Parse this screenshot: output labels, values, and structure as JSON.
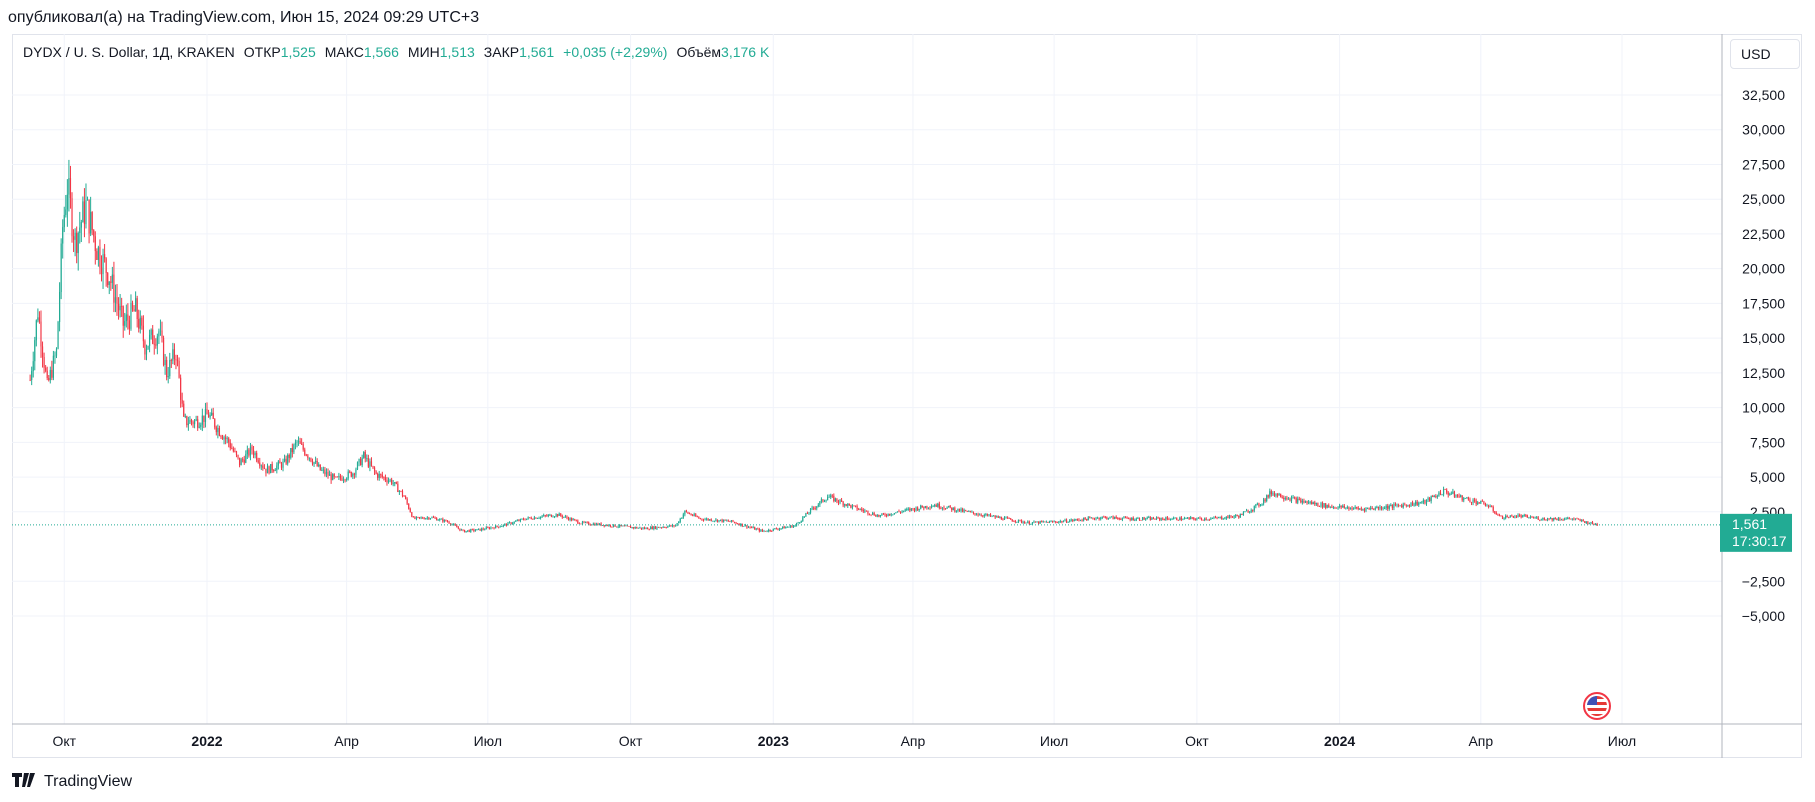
{
  "published": "опубликовал(а) на TradingView.com, Июн 15, 2024 09:29 UTC+3",
  "legend": {
    "symbol": "DYDX / U. S. Dollar, 1Д, KRAKEN",
    "open_label": "ОТКР",
    "open": "1,525",
    "high_label": "МАКС",
    "high": "1,566",
    "low_label": "МИН",
    "low": "1,513",
    "close_label": "ЗАКР",
    "close": "1,561",
    "change": "+0,035 (+2,29%)",
    "volume_label": "Объём",
    "volume": "3,176 K"
  },
  "currency_button": "USD",
  "footer": {
    "brand": "TradingView"
  },
  "colors": {
    "up": "#22ab94",
    "down": "#f23645",
    "grid": "#f0f3fa",
    "price_tag": "#22ab94"
  },
  "icons": {
    "event_flag": "us-flag-icon",
    "logo": "tradingview-logo-icon"
  },
  "chart_data": {
    "type": "candlestick",
    "y_ticks": [
      "32,500",
      "30,000",
      "27,500",
      "25,000",
      "22,500",
      "20,000",
      "17,500",
      "15,000",
      "12,500",
      "10,000",
      "7,500",
      "5,000",
      "2,500",
      "−2,500",
      "−5,000"
    ],
    "ylim": [
      -5000,
      35000
    ],
    "x_ticks": [
      {
        "label": "Окт",
        "date": "2021-10-01",
        "bold": false
      },
      {
        "label": "2022",
        "date": "2022-01-01",
        "bold": true
      },
      {
        "label": "Апр",
        "date": "2022-04-01",
        "bold": false
      },
      {
        "label": "Июл",
        "date": "2022-07-01",
        "bold": false
      },
      {
        "label": "Окт",
        "date": "2022-10-01",
        "bold": false
      },
      {
        "label": "2023",
        "date": "2023-01-01",
        "bold": true
      },
      {
        "label": "Апр",
        "date": "2023-04-01",
        "bold": false
      },
      {
        "label": "Июл",
        "date": "2023-07-01",
        "bold": false
      },
      {
        "label": "Окт",
        "date": "2023-10-01",
        "bold": false
      },
      {
        "label": "2024",
        "date": "2024-01-01",
        "bold": true
      },
      {
        "label": "Апр",
        "date": "2024-04-01",
        "bold": false
      },
      {
        "label": "Июл",
        "date": "2024-07-01",
        "bold": false
      }
    ],
    "x_range": [
      "2021-08-10",
      "2024-09-15"
    ],
    "last_price": {
      "value": 1561,
      "label": "1,561",
      "countdown": "17:30:17"
    },
    "price_path": [
      {
        "date": "2021-09-09",
        "value": 12000
      },
      {
        "date": "2021-09-14",
        "value": 17000
      },
      {
        "date": "2021-09-20",
        "value": 11500
      },
      {
        "date": "2021-09-26",
        "value": 14000
      },
      {
        "date": "2021-09-30",
        "value": 23000
      },
      {
        "date": "2021-10-03",
        "value": 26000
      },
      {
        "date": "2021-10-08",
        "value": 22000
      },
      {
        "date": "2021-10-15",
        "value": 24500
      },
      {
        "date": "2021-10-22",
        "value": 21500
      },
      {
        "date": "2021-10-30",
        "value": 19500
      },
      {
        "date": "2021-11-08",
        "value": 16000
      },
      {
        "date": "2021-11-16",
        "value": 17000
      },
      {
        "date": "2021-11-22",
        "value": 14500
      },
      {
        "date": "2021-12-01",
        "value": 15500
      },
      {
        "date": "2021-12-06",
        "value": 12500
      },
      {
        "date": "2021-12-12",
        "value": 14000
      },
      {
        "date": "2021-12-17",
        "value": 9000
      },
      {
        "date": "2021-12-25",
        "value": 9000
      },
      {
        "date": "2022-01-02",
        "value": 9500
      },
      {
        "date": "2022-01-08",
        "value": 8500
      },
      {
        "date": "2022-01-15",
        "value": 7500
      },
      {
        "date": "2022-01-22",
        "value": 6000
      },
      {
        "date": "2022-01-30",
        "value": 7000
      },
      {
        "date": "2022-02-08",
        "value": 5500
      },
      {
        "date": "2022-02-20",
        "value": 6000
      },
      {
        "date": "2022-02-28",
        "value": 7500
      },
      {
        "date": "2022-03-08",
        "value": 6500
      },
      {
        "date": "2022-03-15",
        "value": 5500
      },
      {
        "date": "2022-03-25",
        "value": 4800
      },
      {
        "date": "2022-04-05",
        "value": 5300
      },
      {
        "date": "2022-04-12",
        "value": 6500
      },
      {
        "date": "2022-04-20",
        "value": 5200
      },
      {
        "date": "2022-04-30",
        "value": 4700
      },
      {
        "date": "2022-05-08",
        "value": 3600
      },
      {
        "date": "2022-05-14",
        "value": 2000
      },
      {
        "date": "2022-05-25",
        "value": 2100
      },
      {
        "date": "2022-06-05",
        "value": 1800
      },
      {
        "date": "2022-06-15",
        "value": 1100
      },
      {
        "date": "2022-06-25",
        "value": 1200
      },
      {
        "date": "2022-07-10",
        "value": 1500
      },
      {
        "date": "2022-07-25",
        "value": 2000
      },
      {
        "date": "2022-08-15",
        "value": 2300
      },
      {
        "date": "2022-08-30",
        "value": 1700
      },
      {
        "date": "2022-09-20",
        "value": 1500
      },
      {
        "date": "2022-10-10",
        "value": 1300
      },
      {
        "date": "2022-10-30",
        "value": 1500
      },
      {
        "date": "2022-11-05",
        "value": 2500
      },
      {
        "date": "2022-11-15",
        "value": 2000
      },
      {
        "date": "2022-12-05",
        "value": 1800
      },
      {
        "date": "2022-12-25",
        "value": 1100
      },
      {
        "date": "2023-01-15",
        "value": 1500
      },
      {
        "date": "2023-01-25",
        "value": 2600
      },
      {
        "date": "2023-02-05",
        "value": 3600
      },
      {
        "date": "2023-02-20",
        "value": 2900
      },
      {
        "date": "2023-03-10",
        "value": 2200
      },
      {
        "date": "2023-04-01",
        "value": 2700
      },
      {
        "date": "2023-04-15",
        "value": 3000
      },
      {
        "date": "2023-05-05",
        "value": 2500
      },
      {
        "date": "2023-05-25",
        "value": 2100
      },
      {
        "date": "2023-06-15",
        "value": 1700
      },
      {
        "date": "2023-07-05",
        "value": 1800
      },
      {
        "date": "2023-08-01",
        "value": 2100
      },
      {
        "date": "2023-08-20",
        "value": 2000
      },
      {
        "date": "2023-09-15",
        "value": 2000
      },
      {
        "date": "2023-10-10",
        "value": 2000
      },
      {
        "date": "2023-10-28",
        "value": 2200
      },
      {
        "date": "2023-11-10",
        "value": 3000
      },
      {
        "date": "2023-11-18",
        "value": 3900
      },
      {
        "date": "2023-12-05",
        "value": 3300
      },
      {
        "date": "2023-12-25",
        "value": 2900
      },
      {
        "date": "2024-01-15",
        "value": 2700
      },
      {
        "date": "2024-02-05",
        "value": 2900
      },
      {
        "date": "2024-02-25",
        "value": 3200
      },
      {
        "date": "2024-03-08",
        "value": 4000
      },
      {
        "date": "2024-03-20",
        "value": 3500
      },
      {
        "date": "2024-04-05",
        "value": 3000
      },
      {
        "date": "2024-04-14",
        "value": 2100
      },
      {
        "date": "2024-04-25",
        "value": 2200
      },
      {
        "date": "2024-05-10",
        "value": 2000
      },
      {
        "date": "2024-05-30",
        "value": 2000
      },
      {
        "date": "2024-06-10",
        "value": 1700
      },
      {
        "date": "2024-06-15",
        "value": 1561
      }
    ]
  }
}
